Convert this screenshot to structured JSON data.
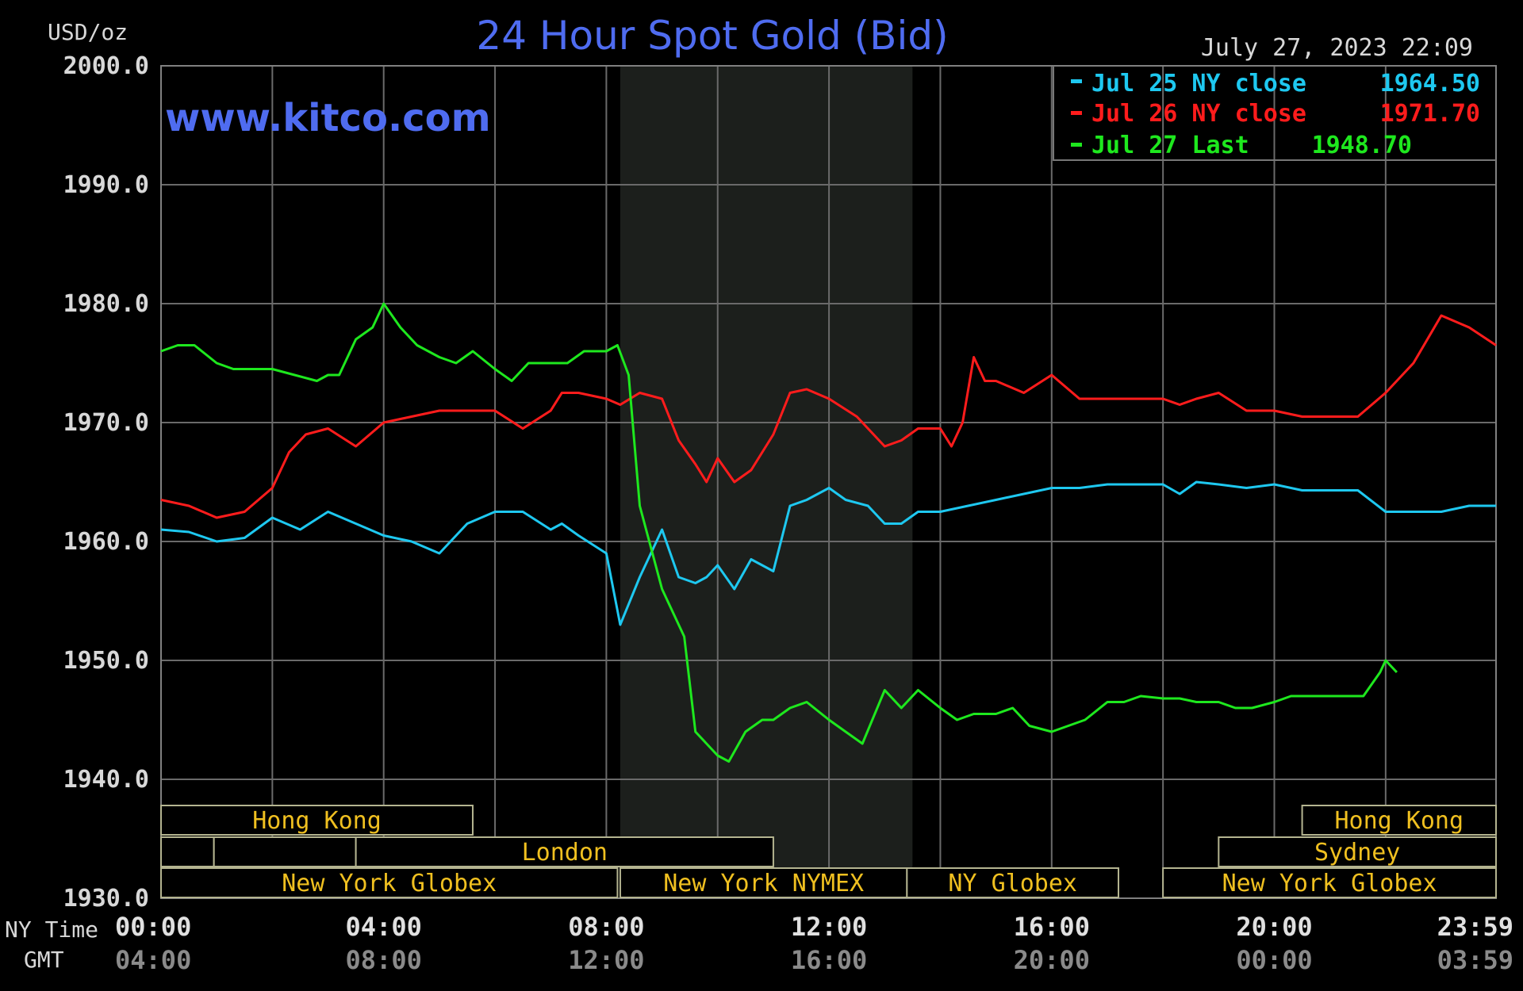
{
  "chart_data": {
    "type": "line",
    "title": "24 Hour Spot Gold (Bid)",
    "watermark": "www.kitco.com",
    "timestamp": "July 27, 2023 22:09",
    "ylabel": "USD/oz",
    "ylim": [
      1930,
      2000
    ],
    "y_ticks": [
      "2000.0",
      "1990.0",
      "1980.0",
      "1970.0",
      "1960.0",
      "1950.0",
      "1940.0",
      "1930.0"
    ],
    "y_tick_values": [
      2000,
      1990,
      1980,
      1970,
      1960,
      1950,
      1940,
      1930
    ],
    "xlim": [
      0,
      23.983
    ],
    "x_tick_values": [
      0,
      4,
      8,
      12,
      16,
      20,
      23.983
    ],
    "x_ticks_ny": [
      "00:00",
      "04:00",
      "08:00",
      "12:00",
      "16:00",
      "20:00",
      "23:59"
    ],
    "x_ticks_gmt": [
      "04:00",
      "08:00",
      "12:00",
      "16:00",
      "20:00",
      "00:00",
      "03:59"
    ],
    "row_label_ny": "NY Time",
    "row_label_gmt": "GMT",
    "grid": true,
    "legend_position": "top-right",
    "shaded_session": {
      "start": 8.25,
      "end": 13.5
    },
    "series": [
      {
        "name": "Jul 25 NY close 1964.50",
        "label": "Jul 25 NY close",
        "value_label": "1964.50",
        "color": "#1ec8f0",
        "x": [
          0,
          0.5,
          1,
          1.5,
          2,
          2.5,
          3,
          3.5,
          4,
          4.5,
          5,
          5.5,
          6,
          6.5,
          7,
          7.2,
          7.5,
          8,
          8.25,
          8.6,
          9,
          9.3,
          9.6,
          9.8,
          10,
          10.3,
          10.6,
          11,
          11.3,
          11.6,
          12,
          12.3,
          12.7,
          13,
          13.3,
          13.6,
          14,
          14.5,
          15,
          15.5,
          16,
          16.5,
          17,
          17.5,
          18,
          18.3,
          18.6,
          19,
          19.5,
          20,
          20.5,
          21,
          21.5,
          22,
          22.5,
          23,
          23.5,
          23.983
        ],
        "y": [
          1961,
          1960.8,
          1960,
          1960.3,
          1962,
          1961,
          1962.5,
          1961.5,
          1960.5,
          1960,
          1959,
          1961.5,
          1962.5,
          1962.5,
          1961,
          1961.5,
          1960.5,
          1959,
          1953,
          1957,
          1961,
          1957,
          1956.5,
          1957,
          1958,
          1956,
          1958.5,
          1957.5,
          1963,
          1963.5,
          1964.5,
          1963.5,
          1963,
          1961.5,
          1961.5,
          1962.5,
          1962.5,
          1963,
          1963.5,
          1964,
          1964.5,
          1964.5,
          1964.8,
          1964.8,
          1964.8,
          1964,
          1965,
          1964.8,
          1964.5,
          1964.8,
          1964.3,
          1964.3,
          1964.3,
          1962.5,
          1962.5,
          1962.5,
          1963,
          1963
        ]
      },
      {
        "name": "Jul 26 NY close 1971.70",
        "label": "Jul 26 NY close",
        "value_label": "1971.70",
        "color": "#ff1c1c",
        "x": [
          0,
          0.5,
          1,
          1.5,
          2,
          2.3,
          2.6,
          3,
          3.5,
          4,
          4.5,
          5,
          5.5,
          6,
          6.5,
          7,
          7.2,
          7.5,
          8,
          8.25,
          8.6,
          9,
          9.3,
          9.6,
          9.8,
          10,
          10.3,
          10.6,
          11,
          11.3,
          11.6,
          12,
          12.5,
          13,
          13.3,
          13.6,
          14,
          14.2,
          14.4,
          14.6,
          14.8,
          15,
          15.5,
          16,
          16.5,
          17,
          17.5,
          18,
          18.3,
          18.6,
          19,
          19.5,
          20,
          20.5,
          21,
          21.5,
          22,
          22.5,
          23,
          23.5,
          23.983
        ],
        "y": [
          1963.5,
          1963,
          1962,
          1962.5,
          1964.5,
          1967.5,
          1969,
          1969.5,
          1968,
          1970,
          1970.5,
          1971,
          1971,
          1971,
          1969.5,
          1971,
          1972.5,
          1972.5,
          1972,
          1971.5,
          1972.5,
          1972,
          1968.5,
          1966.5,
          1965,
          1967,
          1965,
          1966,
          1969,
          1972.5,
          1972.8,
          1972,
          1970.5,
          1968,
          1968.5,
          1969.5,
          1969.5,
          1968,
          1970,
          1975.5,
          1973.5,
          1973.5,
          1972.5,
          1974,
          1972,
          1972,
          1972,
          1972,
          1971.5,
          1972,
          1972.5,
          1971,
          1971,
          1970.5,
          1970.5,
          1970.5,
          1972.5,
          1975,
          1979,
          1978,
          1976.5
        ]
      },
      {
        "name": "Jul 27 Last 1948.70",
        "label": "Jul 27 Last",
        "value_label": "1948.70",
        "color": "#1ee81e",
        "x": [
          0,
          0.3,
          0.6,
          1,
          1.3,
          1.6,
          2,
          2.4,
          2.8,
          3,
          3.2,
          3.5,
          3.8,
          4,
          4.3,
          4.6,
          5,
          5.3,
          5.6,
          6,
          6.3,
          6.6,
          7,
          7.3,
          7.6,
          8,
          8.2,
          8.4,
          8.6,
          9,
          9.2,
          9.4,
          9.6,
          9.8,
          10,
          10.2,
          10.5,
          10.8,
          11,
          11.3,
          11.6,
          12,
          12.3,
          12.6,
          13,
          13.3,
          13.6,
          14,
          14.3,
          14.6,
          15,
          15.3,
          15.6,
          16,
          16.3,
          16.6,
          17,
          17.3,
          17.6,
          18,
          18.3,
          18.6,
          19,
          19.3,
          19.6,
          20,
          20.3,
          20.6,
          21,
          21.3,
          21.6,
          21.9,
          22,
          22.2
        ],
        "y": [
          1976,
          1976.5,
          1976.5,
          1975,
          1974.5,
          1974.5,
          1974.5,
          1974,
          1973.5,
          1974,
          1974,
          1977,
          1978,
          1980,
          1978,
          1976.5,
          1975.5,
          1975,
          1976,
          1974.5,
          1973.5,
          1975,
          1975,
          1975,
          1976,
          1976,
          1976.5,
          1974,
          1963,
          1956,
          1954,
          1952,
          1944,
          1943,
          1942,
          1941.5,
          1944,
          1945,
          1945,
          1946,
          1946.5,
          1945,
          1944,
          1943,
          1947.5,
          1946,
          1947.5,
          1946,
          1945,
          1945.5,
          1945.5,
          1946,
          1944.5,
          1944,
          1944.5,
          1945,
          1946.5,
          1946.5,
          1947,
          1946.8,
          1946.8,
          1946.5,
          1946.5,
          1946,
          1946,
          1946.5,
          1947,
          1947,
          1947,
          1947,
          1947,
          1949,
          1950,
          1949
        ]
      }
    ],
    "sessions": [
      {
        "label": "Hong Kong",
        "row": 0,
        "start": 0,
        "end": 5.6
      },
      {
        "label": "",
        "row": 1,
        "start": 0,
        "end": 0.95
      },
      {
        "label": "",
        "row": 1,
        "start": 0.95,
        "end": 3.5
      },
      {
        "label": "London",
        "row": 1,
        "start": 3.5,
        "end": 11.0
      },
      {
        "label": "New York Globex",
        "row": 2,
        "start": 0,
        "end": 8.2
      },
      {
        "label": "New York NYMEX",
        "row": 2,
        "start": 8.25,
        "end": 13.4
      },
      {
        "label": "NY Globex",
        "row": 2,
        "start": 13.4,
        "end": 17.2
      },
      {
        "label": "Hong Kong",
        "row": 0,
        "start": 20.5,
        "end": 23.983
      },
      {
        "label": "Sydney",
        "row": 1,
        "start": 19.0,
        "end": 23.983
      },
      {
        "label": "New York Globex",
        "row": 2,
        "start": 18.0,
        "end": 23.983
      }
    ]
  }
}
